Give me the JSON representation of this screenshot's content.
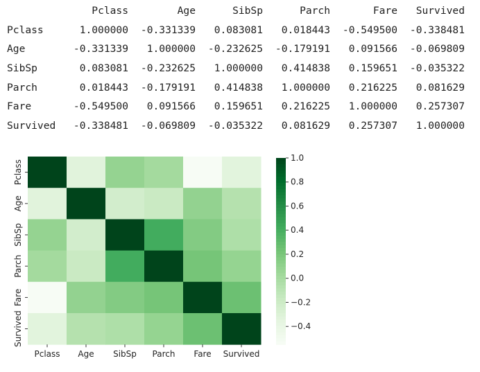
{
  "table": {
    "corner": "",
    "columns": [
      "Pclass",
      "Age",
      "SibSp",
      "Parch",
      "Fare",
      "Survived"
    ],
    "rows": [
      {
        "label": "Pclass",
        "cells": [
          "1.000000",
          "-0.331339",
          "0.083081",
          "0.018443",
          "-0.549500",
          "-0.338481"
        ]
      },
      {
        "label": "Age",
        "cells": [
          "-0.331339",
          "1.000000",
          "-0.232625",
          "-0.179191",
          "0.091566",
          "-0.069809"
        ]
      },
      {
        "label": "SibSp",
        "cells": [
          "0.083081",
          "-0.232625",
          "1.000000",
          "0.414838",
          "0.159651",
          "-0.035322"
        ]
      },
      {
        "label": "Parch",
        "cells": [
          "0.018443",
          "-0.179191",
          "0.414838",
          "1.000000",
          "0.216225",
          "0.081629"
        ]
      },
      {
        "label": "Fare",
        "cells": [
          "-0.549500",
          "0.091566",
          "0.159651",
          "0.216225",
          "1.000000",
          "0.257307"
        ]
      },
      {
        "label": "Survived",
        "cells": [
          "-0.338481",
          "-0.069809",
          "-0.035322",
          "0.081629",
          "0.257307",
          "1.000000"
        ]
      }
    ]
  },
  "chart_data": {
    "type": "heatmap",
    "colormap": "Greens",
    "x_labels": [
      "Pclass",
      "Age",
      "SibSp",
      "Parch",
      "Fare",
      "Survived"
    ],
    "y_labels": [
      "Pclass",
      "Age",
      "SibSp",
      "Parch",
      "Fare",
      "Survived"
    ],
    "values": [
      [
        1.0,
        -0.331339,
        0.083081,
        0.018443,
        -0.5495,
        -0.338481
      ],
      [
        -0.331339,
        1.0,
        -0.232625,
        -0.179191,
        0.091566,
        -0.069809
      ],
      [
        0.083081,
        -0.232625,
        1.0,
        0.414838,
        0.159651,
        -0.035322
      ],
      [
        0.018443,
        -0.179191,
        0.414838,
        1.0,
        0.216225,
        0.081629
      ],
      [
        -0.5495,
        0.091566,
        0.159651,
        0.216225,
        1.0,
        0.257307
      ],
      [
        -0.338481,
        -0.069809,
        -0.035322,
        0.081629,
        0.257307,
        1.0
      ]
    ],
    "vmin": -0.5495,
    "vmax": 1.0,
    "colorbar": {
      "ticks": [
        1.0,
        0.8,
        0.6,
        0.4,
        0.2,
        0.0,
        -0.2,
        -0.4
      ],
      "tick_labels": [
        "1.0",
        "0.8",
        "0.6",
        "0.4",
        "0.2",
        "0.0",
        "−0.2",
        "−0.4"
      ]
    }
  }
}
